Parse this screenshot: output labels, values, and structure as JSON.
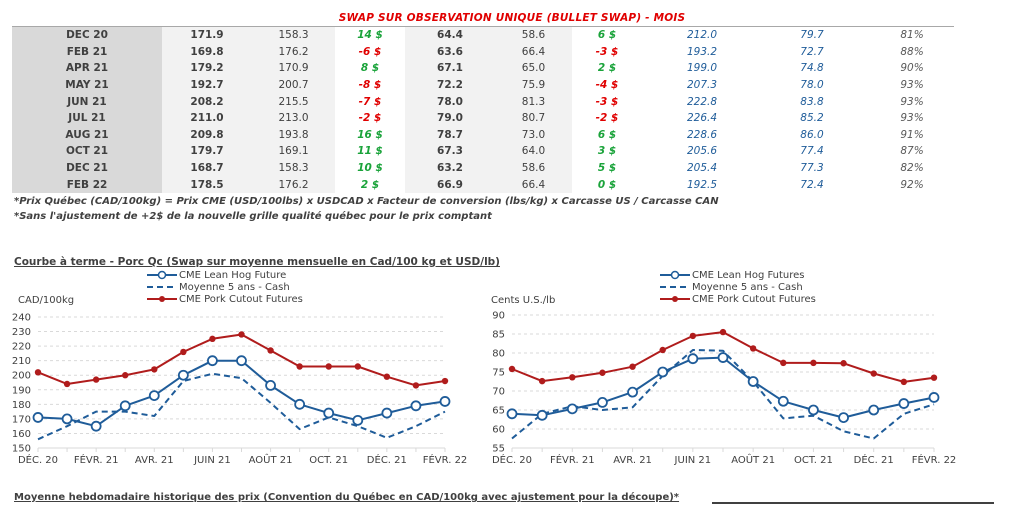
{
  "table": {
    "title": "SWAP SUR OBSERVATION UNIQUE (BULLET SWAP) - MOIS",
    "rows": [
      {
        "month": "DEC 20",
        "qc1": "171.9",
        "qc2": "158.3",
        "diff1": "14 $",
        "diff1_sign": "pos",
        "usd1": "64.4",
        "usd2": "58.6",
        "diff2": "6 $",
        "diff2_sign": "pos",
        "cutout_cad": "212.0",
        "cutout_usd": "79.7",
        "ratio": "81%"
      },
      {
        "month": "FEB 21",
        "qc1": "169.8",
        "qc2": "176.2",
        "diff1": "-6 $",
        "diff1_sign": "neg",
        "usd1": "63.6",
        "usd2": "66.4",
        "diff2": "-3 $",
        "diff2_sign": "neg",
        "cutout_cad": "193.2",
        "cutout_usd": "72.7",
        "ratio": "88%"
      },
      {
        "month": "APR 21",
        "qc1": "179.2",
        "qc2": "170.9",
        "diff1": "8 $",
        "diff1_sign": "pos",
        "usd1": "67.1",
        "usd2": "65.0",
        "diff2": "2 $",
        "diff2_sign": "pos",
        "cutout_cad": "199.0",
        "cutout_usd": "74.8",
        "ratio": "90%"
      },
      {
        "month": "MAY 21",
        "qc1": "192.7",
        "qc2": "200.7",
        "diff1": "-8 $",
        "diff1_sign": "neg",
        "usd1": "72.2",
        "usd2": "75.9",
        "diff2": "-4 $",
        "diff2_sign": "neg",
        "cutout_cad": "207.3",
        "cutout_usd": "78.0",
        "ratio": "93%"
      },
      {
        "month": "JUN 21",
        "qc1": "208.2",
        "qc2": "215.5",
        "diff1": "-7 $",
        "diff1_sign": "neg",
        "usd1": "78.0",
        "usd2": "81.3",
        "diff2": "-3 $",
        "diff2_sign": "neg",
        "cutout_cad": "222.8",
        "cutout_usd": "83.8",
        "ratio": "93%"
      },
      {
        "month": "JUL 21",
        "qc1": "211.0",
        "qc2": "213.0",
        "diff1": "-2 $",
        "diff1_sign": "neg",
        "usd1": "79.0",
        "usd2": "80.7",
        "diff2": "-2 $",
        "diff2_sign": "neg",
        "cutout_cad": "226.4",
        "cutout_usd": "85.2",
        "ratio": "93%"
      },
      {
        "month": "AUG 21",
        "qc1": "209.8",
        "qc2": "193.8",
        "diff1": "16 $",
        "diff1_sign": "pos",
        "usd1": "78.7",
        "usd2": "73.0",
        "diff2": "6 $",
        "diff2_sign": "pos",
        "cutout_cad": "228.6",
        "cutout_usd": "86.0",
        "ratio": "91%"
      },
      {
        "month": "OCT 21",
        "qc1": "179.7",
        "qc2": "169.1",
        "diff1": "11 $",
        "diff1_sign": "pos",
        "usd1": "67.3",
        "usd2": "64.0",
        "diff2": "3 $",
        "diff2_sign": "pos",
        "cutout_cad": "205.6",
        "cutout_usd": "77.4",
        "ratio": "87%"
      },
      {
        "month": "DEC 21",
        "qc1": "168.7",
        "qc2": "158.3",
        "diff1": "10 $",
        "diff1_sign": "pos",
        "usd1": "63.2",
        "usd2": "58.6",
        "diff2": "5 $",
        "diff2_sign": "pos",
        "cutout_cad": "205.4",
        "cutout_usd": "77.3",
        "ratio": "82%"
      },
      {
        "month": "FEB 22",
        "qc1": "178.5",
        "qc2": "176.2",
        "diff1": "2 $",
        "diff1_sign": "pos",
        "usd1": "66.9",
        "usd2": "66.4",
        "diff2": "0 $",
        "diff2_sign": "pos",
        "cutout_cad": "192.5",
        "cutout_usd": "72.4",
        "ratio": "92%"
      }
    ],
    "note1": "*Prix Québec (CAD/100kg) = Prix CME (USD/100lbs) x USDCAD x Facteur de conversion (lbs/kg) x Carcasse US / Carcasse CAN",
    "note2": "*Sans l'ajustement de +2$ de la nouvelle grille qualité québec pour le prix comptant"
  },
  "section1_title": "Courbe à terme - Porc Qc (Swap sur moyenne mensuelle en Cad/100 kg et USD/lb)",
  "section2_title": "Moyenne hebdomadaire historique des prix (Convention du Québec en CAD/100kg avec ajustement pour la découpe)*",
  "colors": {
    "lean_hog": "#1f5c99",
    "moyenne": "#1f5c99",
    "cutout": "#b01c1c",
    "grid": "#d9d9d9"
  },
  "chart_data": [
    {
      "type": "line",
      "title": "",
      "ylabel": "CAD/100kg",
      "xlabel": "",
      "ylim": [
        150,
        240
      ],
      "yticks": [
        150,
        160,
        170,
        180,
        190,
        200,
        210,
        220,
        230,
        240
      ],
      "x": [
        "DÉC. 20",
        "JANV. 21",
        "FÉVR. 21",
        "MARS 21",
        "AVR. 21",
        "MAI 21",
        "JUIN 21",
        "JUIL. 21",
        "AOÛT 21",
        "SEPT. 21",
        "OCT. 21",
        "NOV. 21",
        "DÉC. 21",
        "JANV. 22",
        "FÉVR. 22"
      ],
      "xtick_labels": [
        "DÉC. 20",
        "",
        "FÉVR. 21",
        "",
        "AVR. 21",
        "",
        "JUIN 21",
        "",
        "AOÛT 21",
        "",
        "OCT. 21",
        "",
        "DÉC. 21",
        "",
        "FÉVR. 22"
      ],
      "grid": true,
      "legend_position": "top-center",
      "series": [
        {
          "name": "CME Lean Hog Future",
          "style": "solid-open-circle",
          "values": [
            171,
            170,
            165,
            179,
            186,
            200,
            210,
            210,
            193,
            180,
            174,
            169,
            174,
            179,
            182
          ]
        },
        {
          "name": "Moyenne 5 ans - Cash",
          "style": "dashed",
          "values": [
            156,
            165,
            175,
            175,
            172,
            196,
            201,
            198,
            181,
            163,
            171,
            165,
            157,
            165,
            175
          ]
        },
        {
          "name": "CME Pork Cutout Futures",
          "style": "solid-filled-dot",
          "values": [
            202,
            194,
            197,
            200,
            204,
            216,
            225,
            228,
            217,
            206,
            206,
            206,
            199,
            193,
            196
          ]
        }
      ]
    },
    {
      "type": "line",
      "title": "",
      "ylabel": "Cents U.S./lb",
      "xlabel": "",
      "ylim": [
        55,
        90
      ],
      "yticks": [
        55,
        60,
        65,
        70,
        75,
        80,
        85,
        90
      ],
      "x": [
        "DÉC. 20",
        "JANV. 21",
        "FÉVR. 21",
        "MARS 21",
        "AVR. 21",
        "MAI 21",
        "JUIN 21",
        "JUIL. 21",
        "AOÛT 21",
        "SEPT. 21",
        "OCT. 21",
        "NOV. 21",
        "DÉC. 21",
        "JANV. 22",
        "FÉVR. 22"
      ],
      "xtick_labels": [
        "DÉC. 20",
        "",
        "FÉVR. 21",
        "",
        "AVR. 21",
        "",
        "JUIN 21",
        "",
        "AOÛT 21",
        "",
        "OCT. 21",
        "",
        "DÉC. 21",
        "",
        "FÉVR. 22"
      ],
      "grid": true,
      "legend_position": "top-center",
      "series": [
        {
          "name": "CME Lean Hog Futures",
          "style": "solid-open-circle",
          "values": [
            64,
            63.6,
            65.3,
            67,
            69.7,
            75,
            78.5,
            78.8,
            72.5,
            67.3,
            65,
            63,
            65,
            66.7,
            68.3
          ]
        },
        {
          "name": "Moyenne 5 ans - Cash",
          "style": "dashed",
          "values": [
            57.5,
            64,
            66,
            65,
            65.7,
            74,
            80.8,
            80.6,
            72.5,
            62.8,
            63.5,
            59.4,
            57.5,
            64,
            66.5
          ]
        },
        {
          "name": "CME Pork Cutout Futures",
          "style": "solid-filled-dot",
          "values": [
            75.8,
            72.6,
            73.6,
            74.8,
            76.4,
            80.8,
            84.5,
            85.5,
            81.2,
            77.4,
            77.4,
            77.3,
            74.6,
            72.4,
            73.5
          ]
        }
      ]
    }
  ]
}
